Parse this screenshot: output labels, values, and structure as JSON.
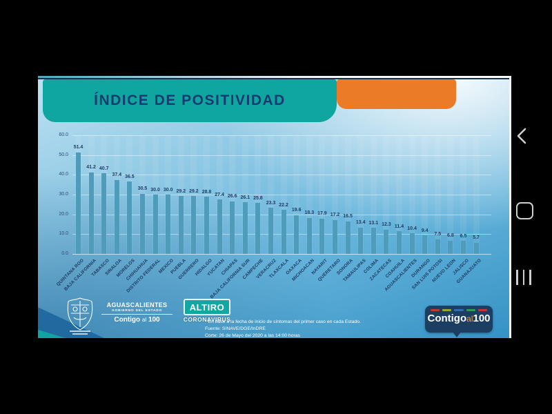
{
  "title": "ÍNDICE DE POSITIVIDAD",
  "chart_data": {
    "type": "bar",
    "title": "ÍNDICE DE POSITIVIDAD",
    "categories": [
      "QUINTANA ROO",
      "BAJA CALIFORNIA",
      "TABASCO",
      "SINALOA",
      "MORELOS",
      "CHIHUAHUA",
      "DISTRITO FEDERAL",
      "MEXICO",
      "PUEBLA",
      "GUERRERO",
      "HIDALGO",
      "YUCATAN",
      "CHIAPAS",
      "BAJA CALIFORNIA SUR",
      "CAMPECHE",
      "VERACRUZ",
      "TLAXCALA",
      "OAXACA",
      "MICHOACAN",
      "NAYARIT",
      "QUERETARO",
      "SONORA",
      "TAMAULIPAS",
      "COLIMA",
      "ZACATECAS",
      "COAHUILA",
      "AGUASCALIENTES",
      "DURANGO",
      "SAN LUIS POTOSI",
      "NUEVO LEON",
      "JALISCO",
      "GUANAJUATO"
    ],
    "values": [
      51.4,
      41.2,
      40.7,
      37.4,
      36.5,
      30.5,
      30.0,
      30.0,
      29.2,
      29.2,
      28.8,
      27.4,
      26.6,
      26.1,
      25.8,
      23.3,
      22.2,
      19.6,
      18.3,
      17.9,
      17.2,
      16.5,
      13.4,
      13.1,
      12.3,
      11.4,
      10.4,
      9.4,
      7.5,
      6.8,
      6.5,
      5.7
    ],
    "yticks": [
      60.0,
      50.0,
      40.0,
      30.0,
      20.0,
      10.0,
      0.0
    ],
    "ylim": [
      0,
      60
    ],
    "xlabel": "",
    "ylabel": "",
    "grid": "horizontal",
    "legend": "none",
    "bar_color": "#4f9cba",
    "label_color": "#1e3c64"
  },
  "footer": {
    "note_line1": "* En base a la fecha de inicio de síntomas del primer caso en cada Estado.",
    "note_line2": "Fuente: SINAVE/DGE/InDRE",
    "note_line3": "Corte: 26 de Mayo del 2020 a las 14:00 horas",
    "gov_logo": {
      "icon": "aguascalientes-coat-of-arms",
      "line1": "AGUASCALIENTES",
      "line2": "GOBIERNO DEL ESTADO",
      "contigo": "Contigo",
      "al": "al",
      "hundred": "100"
    },
    "altiro_logo": {
      "line1": "ALTIRO",
      "line2": "CORONAVIRUS"
    },
    "contigo_badge": {
      "contigo": "Contigo",
      "al": "al",
      "hundred": "100"
    }
  },
  "android_nav": {
    "icons": [
      "back-icon",
      "home-icon",
      "recents-icon"
    ]
  },
  "colors": {
    "teal": "#10a6a0",
    "orange": "#ec7b28",
    "navy_text": "#1e3c64",
    "bar": "#4f9cba",
    "badge_navy": "#1c3e63",
    "badge_al": "#f0a330",
    "nav_icon": "#cfcfcf",
    "dash_colors": [
      "#c0392b",
      "#9aa832",
      "#2e6fb5",
      "#2f9c4e",
      "#c0392b"
    ]
  }
}
